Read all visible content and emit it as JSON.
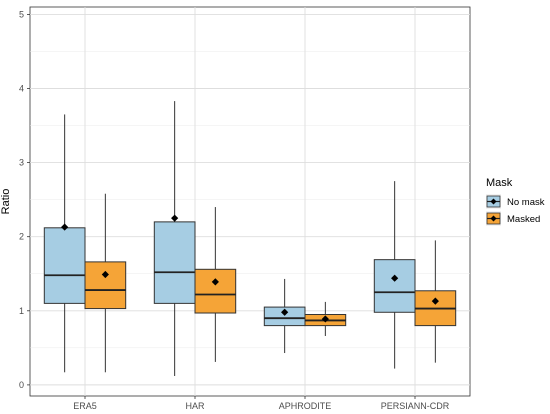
{
  "chart_data": {
    "type": "boxplot",
    "ylabel": "Ratio",
    "ylim": [
      -0.15,
      5.1
    ],
    "yticks": [
      0,
      1,
      2,
      3,
      4,
      5
    ],
    "grid": true,
    "categories": [
      "ERA5",
      "HAR",
      "APHRODITE",
      "PERSIANN-CDR"
    ],
    "legend": {
      "title": "Mask",
      "position": "right",
      "entries": [
        {
          "label": "No mask",
          "color": "#a6cde3"
        },
        {
          "label": "Masked",
          "color": "#f5a437"
        }
      ]
    },
    "series": [
      {
        "name": "No mask",
        "color": "#a6cde3",
        "boxes": [
          {
            "min": 0.17,
            "q1": 1.1,
            "median": 1.48,
            "q3": 2.12,
            "max": 3.65,
            "mean": 2.13
          },
          {
            "min": 0.12,
            "q1": 1.1,
            "median": 1.52,
            "q3": 2.2,
            "max": 3.83,
            "mean": 2.25
          },
          {
            "min": 0.43,
            "q1": 0.8,
            "median": 0.9,
            "q3": 1.05,
            "max": 1.43,
            "mean": 0.98
          },
          {
            "min": 0.22,
            "q1": 0.98,
            "median": 1.25,
            "q3": 1.69,
            "max": 2.75,
            "mean": 1.44
          }
        ]
      },
      {
        "name": "Masked",
        "color": "#f5a437",
        "boxes": [
          {
            "min": 0.17,
            "q1": 1.03,
            "median": 1.28,
            "q3": 1.66,
            "max": 2.58,
            "mean": 1.49
          },
          {
            "min": 0.31,
            "q1": 0.97,
            "median": 1.22,
            "q3": 1.56,
            "max": 2.4,
            "mean": 1.39
          },
          {
            "min": 0.66,
            "q1": 0.8,
            "median": 0.87,
            "q3": 0.95,
            "max": 1.12,
            "mean": 0.89
          },
          {
            "min": 0.3,
            "q1": 0.8,
            "median": 1.03,
            "q3": 1.27,
            "max": 1.95,
            "mean": 1.13
          }
        ]
      }
    ]
  }
}
